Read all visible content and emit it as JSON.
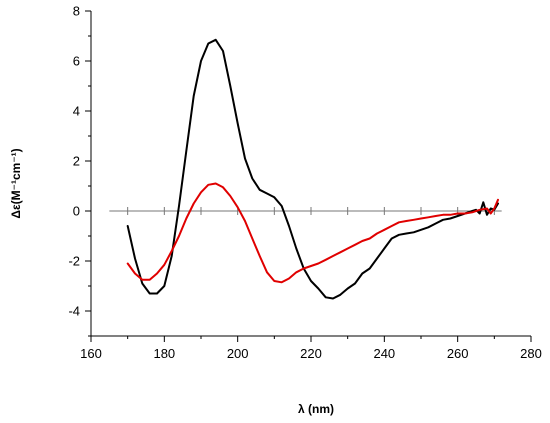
{
  "chart_data": {
    "type": "line",
    "xlabel": "λ (nm)",
    "ylabel": "Δε(M⁻¹cm⁻¹)",
    "xlim": [
      160,
      280
    ],
    "ylim": [
      -5,
      8
    ],
    "x_ticks": [
      160,
      180,
      200,
      220,
      240,
      260,
      280
    ],
    "y_ticks": [
      -4,
      -2,
      0,
      2,
      4,
      6,
      8
    ],
    "zero_line_minor_ticks": [
      170,
      180,
      190,
      200,
      210,
      220,
      230,
      240,
      250,
      260,
      270
    ],
    "grid": false,
    "series": [
      {
        "color": "#000000",
        "x": [
          170,
          172,
          174,
          176,
          178,
          180,
          182,
          184,
          186,
          188,
          190,
          192,
          194,
          196,
          198,
          200,
          202,
          204,
          206,
          208,
          210,
          212,
          214,
          216,
          218,
          220,
          222,
          224,
          226,
          228,
          230,
          232,
          234,
          236,
          238,
          240,
          242,
          244,
          246,
          248,
          250,
          252,
          254,
          256,
          258,
          260,
          262,
          264,
          265,
          266,
          267,
          268,
          269,
          270,
          271
        ],
        "y": [
          -0.6,
          -1.9,
          -2.9,
          -3.3,
          -3.3,
          -3.0,
          -1.8,
          0.2,
          2.4,
          4.6,
          6.0,
          6.7,
          6.85,
          6.4,
          5.0,
          3.5,
          2.1,
          1.3,
          0.85,
          0.7,
          0.55,
          0.2,
          -0.6,
          -1.5,
          -2.3,
          -2.8,
          -3.1,
          -3.45,
          -3.5,
          -3.35,
          -3.1,
          -2.9,
          -2.5,
          -2.3,
          -1.9,
          -1.5,
          -1.1,
          -0.95,
          -0.9,
          -0.85,
          -0.75,
          -0.65,
          -0.5,
          -0.35,
          -0.3,
          -0.2,
          -0.1,
          0.0,
          0.05,
          -0.1,
          0.35,
          -0.15,
          0.1,
          0.05,
          0.3
        ]
      },
      {
        "color": "#e00000",
        "x": [
          170,
          172,
          174,
          176,
          178,
          180,
          182,
          184,
          186,
          188,
          190,
          192,
          194,
          196,
          198,
          200,
          202,
          204,
          206,
          208,
          210,
          212,
          214,
          216,
          218,
          220,
          222,
          224,
          226,
          228,
          230,
          232,
          234,
          236,
          238,
          240,
          242,
          244,
          246,
          248,
          250,
          252,
          254,
          256,
          258,
          260,
          262,
          264,
          266,
          268,
          269,
          270,
          271
        ],
        "y": [
          -2.1,
          -2.5,
          -2.75,
          -2.75,
          -2.5,
          -2.15,
          -1.6,
          -1.0,
          -0.3,
          0.3,
          0.75,
          1.05,
          1.1,
          0.95,
          0.6,
          0.15,
          -0.4,
          -1.1,
          -1.8,
          -2.45,
          -2.8,
          -2.85,
          -2.7,
          -2.45,
          -2.3,
          -2.2,
          -2.1,
          -1.95,
          -1.8,
          -1.65,
          -1.5,
          -1.35,
          -1.2,
          -1.1,
          -0.9,
          -0.75,
          -0.6,
          -0.45,
          -0.4,
          -0.35,
          -0.3,
          -0.25,
          -0.2,
          -0.15,
          -0.15,
          -0.1,
          -0.1,
          -0.05,
          0.05,
          0.1,
          -0.1,
          0.1,
          0.45
        ]
      }
    ]
  }
}
